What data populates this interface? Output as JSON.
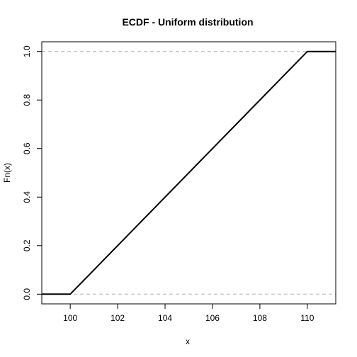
{
  "chart_data": {
    "type": "line",
    "title": "ECDF - Uniform distribution",
    "xlabel": "x",
    "ylabel": "Fn(x)",
    "xlim": [
      98.8,
      111.2
    ],
    "ylim": [
      -0.04,
      1.04
    ],
    "xticks": [
      100,
      102,
      104,
      106,
      108,
      110
    ],
    "yticks": [
      0.0,
      0.2,
      0.4,
      0.6,
      0.8,
      1.0
    ],
    "xtick_labels": [
      "100",
      "102",
      "104",
      "106",
      "108",
      "110"
    ],
    "ytick_labels": [
      "0.0",
      "0.2",
      "0.4",
      "0.6",
      "0.8",
      "1.0"
    ],
    "reference_lines_y": [
      0,
      1
    ],
    "grid": false,
    "series": [
      {
        "x": [
          98.8,
          100.0,
          110.0,
          111.2
        ],
        "y": [
          0.0,
          0.0,
          1.0,
          1.0
        ]
      }
    ]
  }
}
